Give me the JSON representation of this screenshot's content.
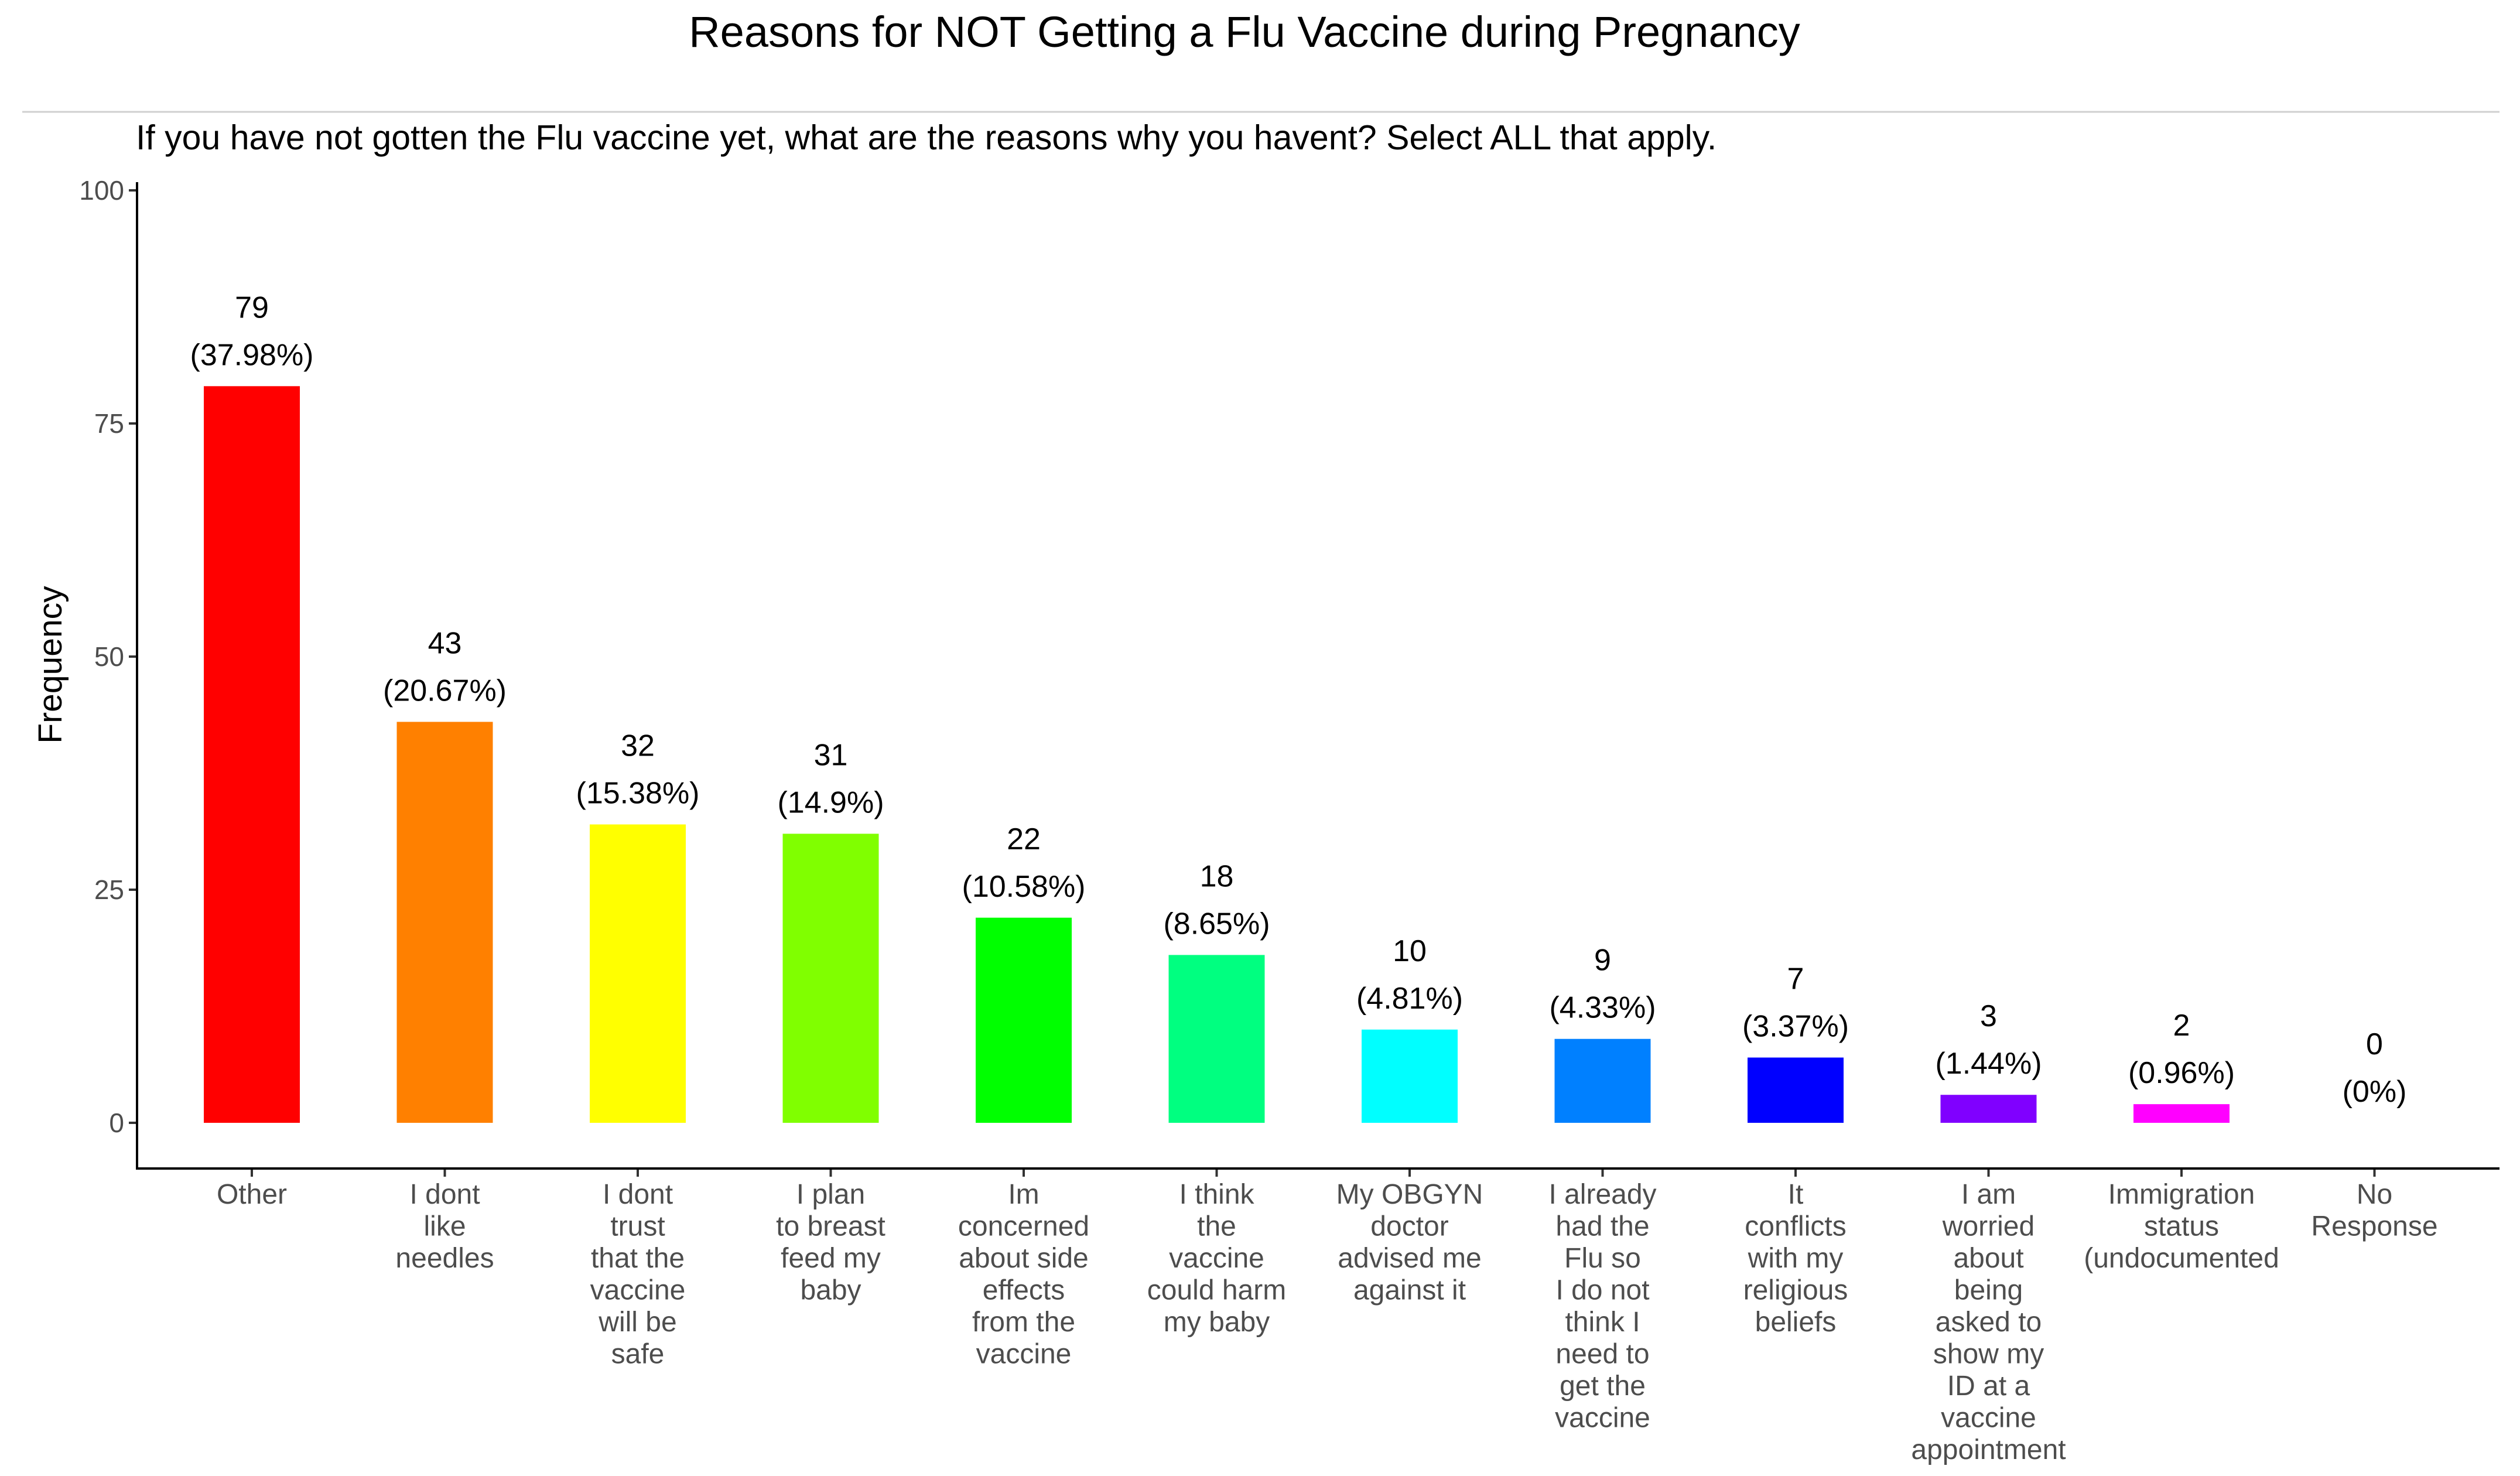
{
  "chart_data": {
    "type": "bar",
    "title": "Reasons for NOT Getting a Flu Vaccine during Pregnancy",
    "subtitle": "If you have not gotten the Flu vaccine yet, what are the reasons why you havent? Select ALL that apply.",
    "xlabel": "",
    "ylabel": "Frequency",
    "ylim": [
      0,
      100
    ],
    "yticks": [
      0,
      25,
      50,
      75,
      100
    ],
    "grid": false,
    "categories": [
      [
        "Other"
      ],
      [
        "I dont",
        "like",
        "needles"
      ],
      [
        "I dont",
        "trust",
        "that the",
        "vaccine",
        "will be",
        "safe"
      ],
      [
        "I plan",
        "to breast",
        "feed my",
        "baby"
      ],
      [
        "Im",
        "concerned",
        "about side",
        "effects",
        "from the",
        "vaccine"
      ],
      [
        "I think",
        "the",
        "vaccine",
        "could harm",
        "my baby"
      ],
      [
        "My OBGYN",
        "doctor",
        "advised me",
        "against it"
      ],
      [
        "I already",
        "had the",
        "Flu so",
        "I do not",
        "think I",
        "need to",
        "get the",
        "vaccine"
      ],
      [
        "It",
        "conflicts",
        "with my",
        "religious",
        "beliefs"
      ],
      [
        "I am",
        "worried",
        "about",
        "being",
        "asked to",
        "show my",
        "ID at a",
        "vaccine",
        "appointment"
      ],
      [
        "Immigration",
        "status",
        "(undocumented"
      ],
      [
        "No",
        "Response"
      ]
    ],
    "values": [
      79,
      43,
      32,
      31,
      22,
      18,
      10,
      9,
      7,
      3,
      2,
      0
    ],
    "value_labels": [
      "79",
      "43",
      "32",
      "31",
      "22",
      "18",
      "10",
      "9",
      "7",
      "3",
      "2",
      "0"
    ],
    "percent_labels": [
      "(37.98%)",
      "(20.67%)",
      "(15.38%)",
      "(14.9%)",
      "(10.58%)",
      "(8.65%)",
      "(4.81%)",
      "(4.33%)",
      "(3.37%)",
      "(1.44%)",
      "(0.96%)",
      "(0%)"
    ],
    "colors": [
      "#FF0000",
      "#FF8000",
      "#FFFF00",
      "#80FF00",
      "#00FF00",
      "#00FF80",
      "#00FFFF",
      "#0080FF",
      "#0000FF",
      "#8000FF",
      "#FF00FF",
      "#FF0080"
    ]
  }
}
